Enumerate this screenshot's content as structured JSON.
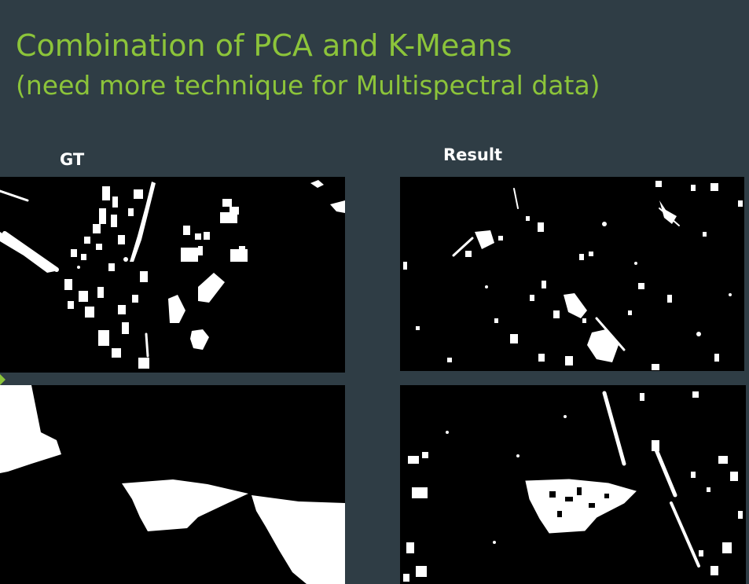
{
  "slide": {
    "title": "Combination of PCA and K-Means",
    "subtitle": "(need more technique for Multispectral data)",
    "colors": {
      "background": "#2f3d45",
      "title": "#8cc43a",
      "label": "#ffffff",
      "mask_foreground": "#ffffff",
      "mask_background": "#000000"
    }
  },
  "columns": {
    "left_label": "GT",
    "right_label": "Result"
  }
}
